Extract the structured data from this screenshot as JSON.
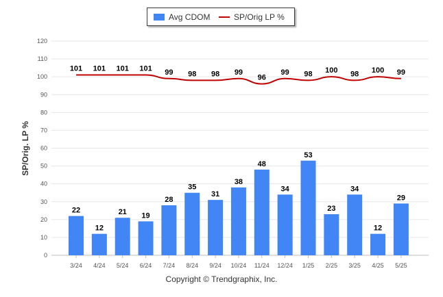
{
  "chart_data": {
    "type": "bar",
    "categories": [
      "3/24",
      "4/24",
      "5/24",
      "6/24",
      "7/24",
      "8/24",
      "9/24",
      "10/24",
      "11/24",
      "12/24",
      "1/25",
      "2/25",
      "3/25",
      "4/25",
      "5/25"
    ],
    "series": [
      {
        "name": "Avg CDOM",
        "type": "bar",
        "color": "#4285f4",
        "values": [
          22,
          12,
          21,
          19,
          28,
          35,
          31,
          38,
          48,
          34,
          53,
          23,
          34,
          12,
          29
        ]
      },
      {
        "name": "SP/Orig LP %",
        "type": "line",
        "color": "#c00000",
        "values": [
          101,
          101,
          101,
          101,
          99,
          98,
          98,
          99,
          96,
          99,
          98,
          100,
          98,
          100,
          99
        ]
      }
    ],
    "ylabel": "SP/Orig. LP %",
    "ylim": [
      0,
      120
    ],
    "yticks": [
      0,
      10,
      20,
      30,
      40,
      50,
      60,
      70,
      80,
      90,
      100,
      110,
      120
    ],
    "grid": true,
    "legend_position": "top-center"
  },
  "footer": {
    "copyright": "Copyright © Trendgraphix, Inc."
  }
}
